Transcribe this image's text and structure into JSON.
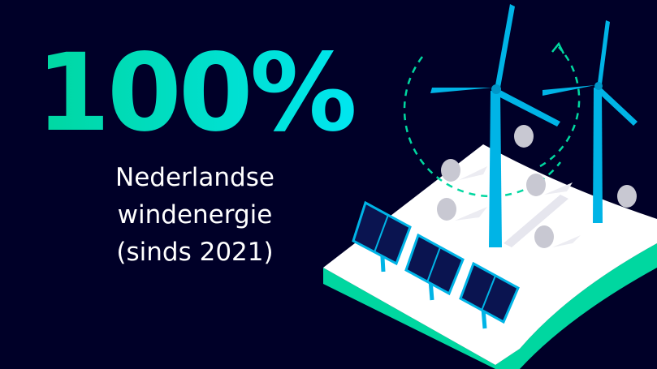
{
  "headline": "100%",
  "caption": [
    "Nederlandse",
    "windenergie",
    "(sinds 2021)"
  ]
}
